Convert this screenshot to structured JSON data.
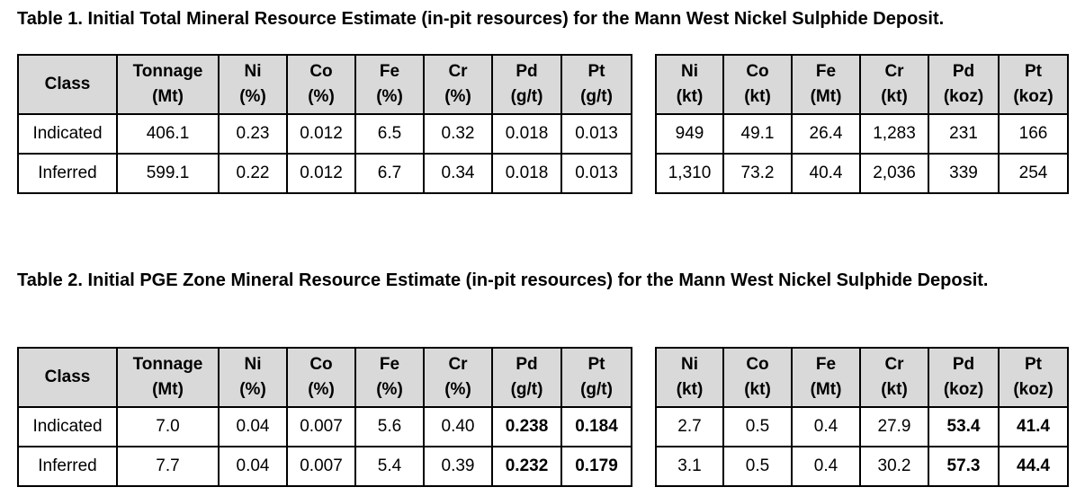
{
  "table1": {
    "caption": "Table 1. Initial Total Mineral Resource Estimate (in-pit resources) for the Mann West Nickel Sulphide Deposit.",
    "left_headers": [
      {
        "line1": "Class",
        "line2": ""
      },
      {
        "line1": "Tonnage",
        "line2": "(Mt)"
      },
      {
        "line1": "Ni",
        "line2": "(%)"
      },
      {
        "line1": "Co",
        "line2": "(%)"
      },
      {
        "line1": "Fe",
        "line2": "(%)"
      },
      {
        "line1": "Cr",
        "line2": "(%)"
      },
      {
        "line1": "Pd",
        "line2": "(g/t)"
      },
      {
        "line1": "Pt",
        "line2": "(g/t)"
      }
    ],
    "right_headers": [
      {
        "line1": "Ni",
        "line2": "(kt)"
      },
      {
        "line1": "Co",
        "line2": "(kt)"
      },
      {
        "line1": "Fe",
        "line2": "(Mt)"
      },
      {
        "line1": "Cr",
        "line2": "(kt)"
      },
      {
        "line1": "Pd",
        "line2": "(koz)"
      },
      {
        "line1": "Pt",
        "line2": "(koz)"
      }
    ],
    "left_rows": [
      [
        "Indicated",
        "406.1",
        "0.23",
        "0.012",
        "6.5",
        "0.32",
        "0.018",
        "0.013"
      ],
      [
        "Inferred",
        "599.1",
        "0.22",
        "0.012",
        "6.7",
        "0.34",
        "0.018",
        "0.013"
      ]
    ],
    "right_rows": [
      [
        "949",
        "49.1",
        "26.4",
        "1,283",
        "231",
        "166"
      ],
      [
        "1,310",
        "73.2",
        "40.4",
        "2,036",
        "339",
        "254"
      ]
    ]
  },
  "table2": {
    "caption": "Table 2. Initial PGE Zone Mineral Resource Estimate (in-pit resources) for the Mann West Nickel Sulphide Deposit.",
    "left_headers": [
      {
        "line1": "Class",
        "line2": ""
      },
      {
        "line1": "Tonnage",
        "line2": "(Mt)"
      },
      {
        "line1": "Ni",
        "line2": "(%)"
      },
      {
        "line1": "Co",
        "line2": "(%)"
      },
      {
        "line1": "Fe",
        "line2": "(%)"
      },
      {
        "line1": "Cr",
        "line2": "(%)"
      },
      {
        "line1": "Pd",
        "line2": "(g/t)"
      },
      {
        "line1": "Pt",
        "line2": "(g/t)"
      }
    ],
    "right_headers": [
      {
        "line1": "Ni",
        "line2": "(kt)"
      },
      {
        "line1": "Co",
        "line2": "(kt)"
      },
      {
        "line1": "Fe",
        "line2": "(Mt)"
      },
      {
        "line1": "Cr",
        "line2": "(kt)"
      },
      {
        "line1": "Pd",
        "line2": "(koz)"
      },
      {
        "line1": "Pt",
        "line2": "(koz)"
      }
    ],
    "left_rows": [
      [
        "Indicated",
        "7.0",
        "0.04",
        "0.007",
        "5.6",
        "0.40",
        "0.238",
        "0.184"
      ],
      [
        "Inferred",
        "7.7",
        "0.04",
        "0.007",
        "5.4",
        "0.39",
        "0.232",
        "0.179"
      ]
    ],
    "right_rows": [
      [
        "2.7",
        "0.5",
        "0.4",
        "27.9",
        "53.4",
        "41.4"
      ],
      [
        "3.1",
        "0.5",
        "0.4",
        "30.2",
        "57.3",
        "44.4"
      ]
    ]
  }
}
